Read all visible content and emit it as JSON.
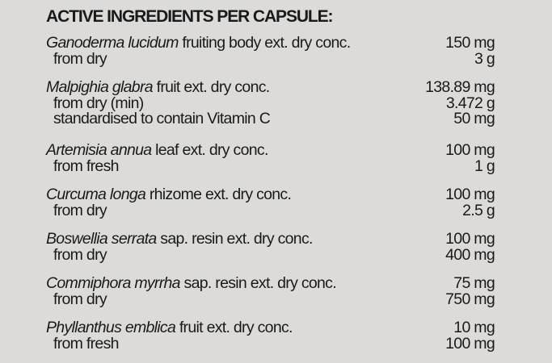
{
  "title": "ACTIVE INGREDIENTS PER CAPSULE:",
  "ingredients": [
    {
      "species": "Ganoderma lucidum",
      "desc": " fruiting body ext. dry conc.",
      "amount": "150 mg",
      "sub": [
        {
          "label": "from dry",
          "amount": "3 g"
        }
      ]
    },
    {
      "species": "Malpighia glabra",
      "desc": " fruit ext. dry conc.",
      "amount": "138.89 mg",
      "sub": [
        {
          "label": "from dry (min)",
          "amount": "3.472 g"
        },
        {
          "label": "standardised to contain Vitamin C",
          "amount": "50 mg"
        }
      ]
    },
    {
      "species": "Artemisia annua",
      "desc": " leaf ext. dry conc.",
      "amount": "100 mg",
      "sub": [
        {
          "label": "from fresh",
          "amount": "1 g"
        }
      ]
    },
    {
      "species": "Curcuma longa",
      "desc": " rhizome ext. dry conc.",
      "amount": "100 mg",
      "sub": [
        {
          "label": "from dry",
          "amount": "2.5 g"
        }
      ]
    },
    {
      "species": "Boswellia serrata",
      "desc": " sap. resin ext. dry conc.",
      "amount": "100 mg",
      "sub": [
        {
          "label": "from dry",
          "amount": "400 mg"
        }
      ]
    },
    {
      "species": "Commiphora myrrha",
      "desc": " sap. resin ext. dry conc.",
      "amount": "75 mg",
      "sub": [
        {
          "label": "from dry",
          "amount": "750 mg"
        }
      ]
    },
    {
      "species": "Phyllanthus emblica",
      "desc": " fruit ext. dry conc.",
      "amount": "10 mg",
      "sub": [
        {
          "label": "from fresh",
          "amount": "100 mg"
        }
      ]
    }
  ]
}
